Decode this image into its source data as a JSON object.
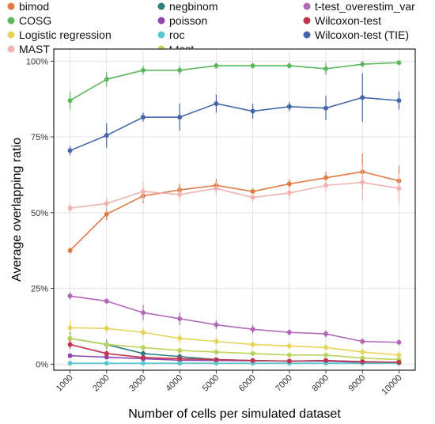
{
  "chart_data": {
    "type": "line",
    "title": "",
    "xlabel": "Number of cells per simulated dataset",
    "ylabel": "Average overlapping ratio",
    "x": [
      1000,
      2000,
      3000,
      4000,
      5000,
      6000,
      7000,
      8000,
      9000,
      10000
    ],
    "x_tick_labels": [
      "1000",
      "2000",
      "3000",
      "4000",
      "5000",
      "6000",
      "7000",
      "8000",
      "9000",
      "10000"
    ],
    "y_ticks": [
      0,
      25,
      50,
      75,
      100
    ],
    "y_tick_labels": [
      "0%",
      "25%",
      "50%",
      "75%",
      "100%"
    ],
    "ylim": [
      -2,
      104
    ],
    "grid": true,
    "legend_position": "top",
    "series": [
      {
        "name": "bimod",
        "color": "#E07B45",
        "values": [
          37.5,
          49.5,
          55.5,
          57.5,
          59,
          57,
          59.5,
          61.5,
          63.5,
          60.5
        ],
        "errors": [
          1,
          2,
          2.5,
          2,
          2,
          1,
          1.5,
          2,
          6,
          5
        ]
      },
      {
        "name": "COSG",
        "color": "#5CB85C",
        "values": [
          87,
          94,
          97,
          97,
          98.5,
          98.5,
          98.5,
          97.5,
          99,
          99.5
        ],
        "errors": [
          3,
          2.5,
          1.5,
          1.5,
          1,
          1,
          1,
          2,
          1,
          0.8
        ]
      },
      {
        "name": "Logistic regression",
        "color": "#E6D55A",
        "values": [
          12,
          11.8,
          10.5,
          8.5,
          7.5,
          6.5,
          6,
          5.5,
          4,
          3
        ],
        "errors": [
          2.5,
          1.5,
          1.5,
          1.5,
          1.5,
          1,
          1,
          1,
          1,
          1
        ]
      },
      {
        "name": "MAST",
        "color": "#F0B3B0",
        "values": [
          51.5,
          53,
          57,
          56,
          58,
          55,
          56.5,
          59,
          60,
          58
        ],
        "errors": [
          1.5,
          2,
          3,
          2,
          2,
          1.5,
          2,
          2,
          6,
          5
        ]
      },
      {
        "name": "negbinom",
        "color": "#2E7D80",
        "values": [
          8.5,
          6.5,
          3.5,
          2.5,
          1.5,
          1.2,
          1,
          1.2,
          0.8,
          0.6
        ],
        "errors": [
          2,
          1.5,
          1,
          0.8,
          0.5,
          0.5,
          0.4,
          0.5,
          0.4,
          0.3
        ]
      },
      {
        "name": "poisson",
        "color": "#8E44AD",
        "values": [
          2.8,
          2.3,
          1.8,
          1.3,
          1.2,
          1.1,
          1,
          1,
          0.6,
          0.5
        ],
        "errors": [
          0.6,
          0.5,
          0.5,
          0.4,
          0.4,
          0.3,
          0.3,
          0.3,
          0.3,
          0.2
        ]
      },
      {
        "name": "roc",
        "color": "#5BC6CF",
        "values": [
          0.3,
          0.3,
          0.3,
          0.3,
          0.3,
          0.3,
          0.3,
          0.3,
          0.3,
          0.3
        ],
        "errors": [
          0.2,
          0.2,
          0.2,
          0.2,
          0.2,
          0.2,
          0.2,
          0.2,
          0.2,
          0.2
        ]
      },
      {
        "name": "t-test",
        "color": "#B8D45B",
        "values": [
          8.5,
          6.5,
          5.5,
          4.5,
          4,
          3.5,
          3,
          3,
          2,
          1.5
        ],
        "errors": [
          1.5,
          1,
          1,
          1,
          0.8,
          0.8,
          0.6,
          0.6,
          0.5,
          0.5
        ]
      },
      {
        "name": "t-test_overestim_var",
        "color": "#B267B8",
        "values": [
          22.5,
          20.8,
          17,
          15,
          13,
          11.5,
          10.5,
          10,
          7.5,
          7.2
        ],
        "errors": [
          1.2,
          1,
          2.5,
          2,
          1.5,
          1.5,
          1,
          1.2,
          1,
          1
        ]
      },
      {
        "name": "Wilcoxon-test",
        "color": "#C0344D",
        "values": [
          6.5,
          3.5,
          2.2,
          1.8,
          1.5,
          1.2,
          1,
          1.2,
          0.8,
          0.6
        ],
        "errors": [
          1.5,
          1,
          0.8,
          0.6,
          0.5,
          0.4,
          0.4,
          0.4,
          0.3,
          0.3
        ]
      },
      {
        "name": "Wilcoxon-test (TIE)",
        "color": "#4466AA",
        "values": [
          70.5,
          75.5,
          81.5,
          81.5,
          86,
          83.5,
          85,
          84.5,
          88,
          87
        ],
        "errors": [
          1.5,
          4,
          1.5,
          4.5,
          3,
          2.5,
          1.5,
          4,
          8,
          3
        ]
      }
    ]
  }
}
